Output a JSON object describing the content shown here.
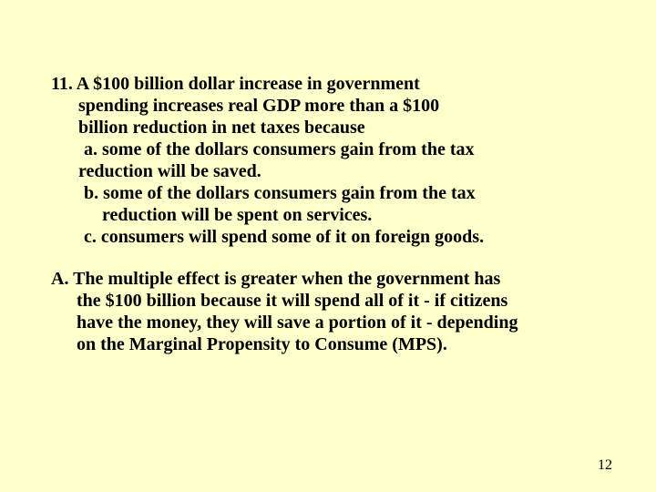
{
  "background_color": "#ffffcc",
  "text_color": "#000000",
  "font_family": "Times New Roman",
  "font_size_pt": 15,
  "font_weight": "bold",
  "page_number": "12",
  "question": {
    "number": "11.",
    "stem_line1": "11. A $100 billion dollar increase in government",
    "stem_line2": "spending increases real GDP more than a $100",
    "stem_line3": "billion reduction in net taxes because",
    "option_a_line1": "a. some of the dollars consumers gain from the tax",
    "option_a_line2": "reduction will be saved.",
    "option_b_line1": "b. some of the dollars consumers gain from the tax",
    "option_b_line2": "reduction will be spent on services.",
    "option_c": "c. consumers will spend some of it on foreign goods."
  },
  "answer": {
    "line1": "A. The multiple effect is greater when the government has",
    "line2": "the $100 billion because it will spend all of it - if citizens",
    "line3": "have the money, they will save a portion of it - depending",
    "line4": "on the Marginal Propensity to Consume (MPS)."
  }
}
